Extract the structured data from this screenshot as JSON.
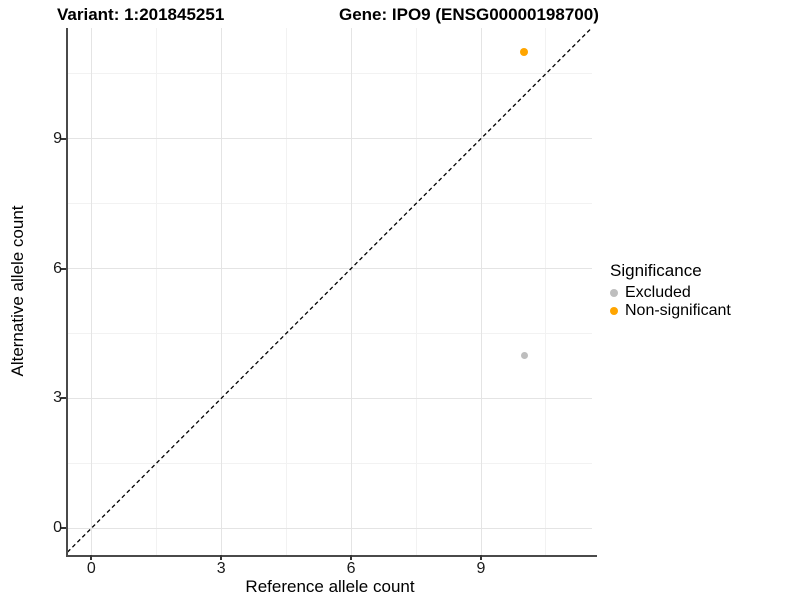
{
  "titles": {
    "variant": "Variant: 1:201845251",
    "gene": "Gene: IPO9 (ENSG00000198700)"
  },
  "legend": {
    "title": "Significance",
    "items": [
      {
        "label": "Excluded",
        "color": "#BEBEBE"
      },
      {
        "label": "Non-significant",
        "color": "#FFA500"
      }
    ]
  },
  "chart_data": {
    "type": "scatter",
    "title_left": "Variant: 1:201845251",
    "title_right": "Gene: IPO9 (ENSG00000198700)",
    "xlabel": "Reference allele count",
    "ylabel": "Alternative allele count",
    "xlim": [
      -0.55,
      11.55
    ],
    "ylim": [
      -0.55,
      11.55
    ],
    "x_ticks": [
      0,
      3,
      6,
      9
    ],
    "y_ticks": [
      0,
      3,
      6,
      9
    ],
    "x_minor_breaks": [
      1.5,
      4.5,
      7.5,
      10.5
    ],
    "y_minor_breaks": [
      1.5,
      4.5,
      7.5,
      10.5
    ],
    "grid": true,
    "legend_position": "right",
    "identity_line": {
      "equation": "y = x",
      "linetype": "dashed",
      "color": "#000000"
    },
    "series": [
      {
        "name": "Excluded",
        "color": "#BEBEBE",
        "point_size": 7,
        "points": [
          {
            "x": 10,
            "y": 4
          }
        ]
      },
      {
        "name": "Non-significant",
        "color": "#FFA500",
        "point_size": 8,
        "points": [
          {
            "x": 10,
            "y": 11
          }
        ]
      }
    ]
  },
  "colors": {
    "grid_major": "#E4E4E4",
    "grid_minor": "#F2F2F2",
    "axis_line": "#4A4A4A",
    "tick_mark": "#333333",
    "text": "#000000"
  }
}
